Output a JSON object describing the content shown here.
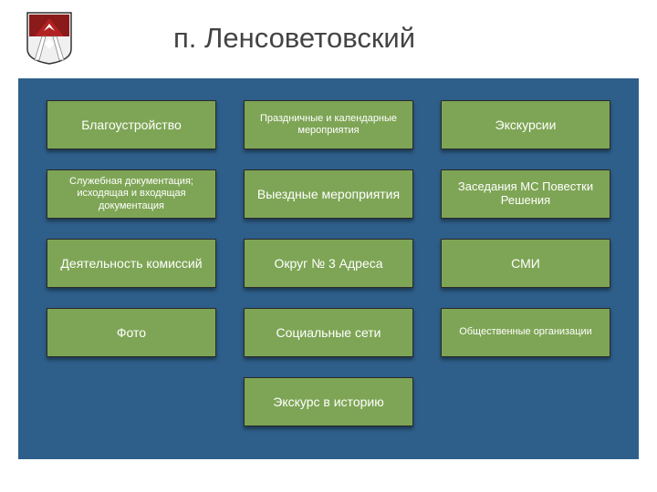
{
  "title": "п. Ленсоветовский",
  "panel": {
    "background_color": "#2e5f8a",
    "tile_color": "#7ea555",
    "tile_text_color": "#ffffff",
    "tile_border_color": "#2a2a2a",
    "rows": [
      [
        {
          "label": "Благоустройство",
          "size": "normal"
        },
        {
          "label": "Праздничные и календарные мероприятия",
          "size": "small"
        },
        {
          "label": "Экскурсии",
          "size": "normal"
        }
      ],
      [
        {
          "label": "Служебная документация; исходящая и входящая документация",
          "size": "small"
        },
        {
          "label": "Выездные мероприятия",
          "size": "normal"
        },
        {
          "label": "Заседания МС Повестки Решения",
          "size": "med"
        }
      ],
      [
        {
          "label": "Деятельность комиссий",
          "size": "normal"
        },
        {
          "label": "Округ № 3 Адреса",
          "size": "normal"
        },
        {
          "label": "СМИ",
          "size": "normal"
        }
      ],
      [
        {
          "label": "Фото",
          "size": "normal"
        },
        {
          "label": "Социальные сети",
          "size": "normal"
        },
        {
          "label": "Общественные организации",
          "size": "small"
        }
      ],
      [
        {
          "label": "Экскурс в историю",
          "size": "normal"
        }
      ]
    ]
  },
  "logo": {
    "shield_fill": "#f0f0f0",
    "shield_stroke": "#333333",
    "top_fill": "#b22222",
    "beam_fill": "#ffffff",
    "center_diamond": "#ffffff"
  }
}
